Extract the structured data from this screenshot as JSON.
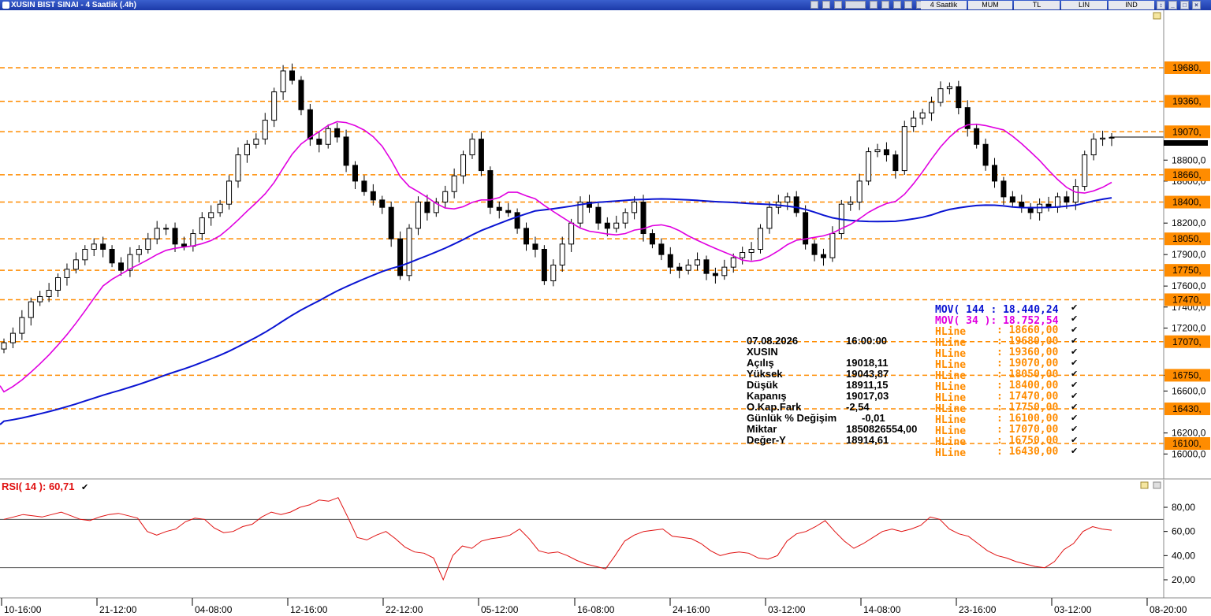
{
  "window": {
    "title": "XUSIN BIST SINAI - 4 Saatlik (.4h)",
    "tabs": [
      "4 Saatlik",
      "MUM",
      "TL",
      "LIN",
      "IND"
    ],
    "toolbar_icons": [
      "pointer-icon",
      "zoom-icon",
      "crosshair-icon",
      "text-icon",
      "draw-icon",
      "color-icon",
      "line-icon",
      "arrow-icon",
      "settings-icon",
      "chevron-icon"
    ]
  },
  "chart_data": [
    {
      "type": "candlestick",
      "title": "XUSIN BIST SINAI - 4 Saatlik (.4h)",
      "x_ticks": [
        "10-16:00",
        "21-12:00",
        "04-08:00",
        "12-16:00",
        "22-12:00",
        "05-12:00",
        "16-08:00",
        "24-16:00",
        "03-12:00",
        "14-08:00",
        "23-16:00",
        "03-12:00",
        "08-20:00"
      ],
      "y_ticks": [
        "16000,0",
        "16200,0",
        "16600,0",
        "16750,0",
        "17200,0",
        "17400,0",
        "17600,0",
        "17900,0",
        "18200,0",
        "18600,0",
        "18800,0",
        "19070,0"
      ],
      "ylim": [
        15900,
        19900
      ],
      "close_series": [
        17060,
        17150,
        17300,
        17450,
        17500,
        17560,
        17680,
        17760,
        17850,
        17950,
        18000,
        17950,
        17820,
        17750,
        17900,
        17950,
        18050,
        18150,
        18150,
        18000,
        17980,
        18100,
        18250,
        18300,
        18380,
        18600,
        18850,
        18950,
        19000,
        19180,
        19450,
        19650,
        19560,
        19280,
        19000,
        18950,
        19100,
        19020,
        18750,
        18600,
        18500,
        18420,
        18350,
        18050,
        17700,
        18150,
        18400,
        18300,
        18400,
        18500,
        18650,
        18850,
        19000,
        18700,
        18350,
        18320,
        18300,
        18150,
        18000,
        17950,
        17650,
        17800,
        18000,
        18200,
        18400,
        18350,
        18200,
        18150,
        18200,
        18300,
        18400,
        18100,
        18000,
        17900,
        17780,
        17750,
        17800,
        17850,
        17720,
        17700,
        17780,
        17870,
        17920,
        17950,
        18150,
        18350,
        18400,
        18450,
        18300,
        18000,
        17900,
        17870,
        18100,
        18380,
        18400,
        18600,
        18880,
        18900,
        18850,
        18700,
        19120,
        19200,
        19250,
        19350,
        19480,
        19500,
        19300,
        19100,
        18950,
        18750,
        18600,
        18450,
        18400,
        18350,
        18300,
        18380,
        18350,
        18450,
        18400,
        18550,
        18850,
        19000,
        19010,
        19017
      ],
      "ohlc_last": {
        "open": 19018.11,
        "high": 19043.87,
        "low": 18911.15,
        "close": 19017.03
      },
      "hlines": [
        18660,
        19680,
        19360,
        19070,
        18050,
        18400,
        17470,
        17750,
        16100,
        17070,
        16750,
        16430
      ],
      "series": [
        {
          "name": "MOV( 144 : 18.440,24",
          "color": "#0a14d2"
        },
        {
          "name": "MOV( 34 ): 18.752,54",
          "color": "#e000e0"
        }
      ]
    },
    {
      "type": "line",
      "title": "RSI( 14 ): 60,71",
      "y_ticks": [
        "20,00",
        "40,00",
        "60,00",
        "80,00"
      ],
      "ylim": [
        10,
        92
      ],
      "reference_lines": [
        30,
        70
      ],
      "color": "#e01010",
      "values": [
        70,
        72,
        74,
        73,
        72,
        74,
        76,
        73,
        70,
        69,
        72,
        74,
        75,
        73,
        71,
        60,
        57,
        60,
        62,
        68,
        71,
        70,
        63,
        59,
        60,
        64,
        66,
        72,
        76,
        74,
        76,
        80,
        82,
        86,
        85,
        88,
        72,
        55,
        53,
        57,
        60,
        54,
        47,
        43,
        42,
        38,
        20,
        40,
        48,
        46,
        52,
        54,
        55,
        57,
        62,
        54,
        44,
        42,
        43,
        40,
        36,
        33,
        31,
        29,
        40,
        52,
        57,
        60,
        61,
        62,
        56,
        55,
        54,
        50,
        44,
        40,
        42,
        43,
        42,
        38,
        37,
        40,
        52,
        58,
        60,
        64,
        69,
        60,
        52,
        46,
        50,
        55,
        60,
        62,
        60,
        62,
        65,
        72,
        70,
        62,
        58,
        56,
        50,
        44,
        40,
        38,
        35,
        33,
        31,
        30,
        35,
        45,
        50,
        60,
        64,
        62,
        61
      ]
    }
  ],
  "info_panel": {
    "date": "07.08.2026",
    "time": "16:00:00",
    "symbol": "XUSIN",
    "rows": [
      {
        "label": "Açılış",
        "value": "19018,11"
      },
      {
        "label": "Yüksek",
        "value": "19043,87"
      },
      {
        "label": "Düşük",
        "value": "18911,15"
      },
      {
        "label": "Kapanış",
        "value": "19017,03"
      },
      {
        "label": "O.Kap.Fark",
        "value": "-2,54"
      },
      {
        "label": "Günlük % Değişim",
        "value": "-0,01"
      },
      {
        "label": "Miktar",
        "value": "1850826554,00"
      },
      {
        "label": "Değer-Y",
        "value": "18914,61"
      }
    ]
  },
  "legend": {
    "mov144": "MOV( 144 : 18.440,24",
    "mov34": "MOV( 34 ): 18.752,54",
    "hline_label": "HLine",
    "hlines": [
      ": 18660,00",
      ": 19680,00",
      ": 19360,00",
      ": 19070,00",
      ": 18050,00",
      ": 18400,00",
      ": 17470,00",
      ": 17750,00",
      ": 16100,00",
      ": 17070,00",
      ": 16750,00",
      ": 16430,00"
    ],
    "check": "✔"
  },
  "price_axis": {
    "hline_labels": [
      "19680,",
      "19360,",
      "19070,",
      "18660,",
      "18400,",
      "18050,",
      "17750,",
      "17470,",
      "17070,",
      "16750,",
      "16430,",
      "16100,"
    ],
    "ticks": [
      "18800,0",
      "18600,0",
      "18200,0",
      "17900,0",
      "17600,0",
      "17400,0",
      "17200,0",
      "16750,0",
      "16600,0",
      "16200,0",
      "16000,0"
    ]
  },
  "rsi_axis": {
    "ticks": [
      "80,00",
      "60,00",
      "40,00",
      "20,00"
    ],
    "label": "RSI( 14 ): 60,71"
  },
  "colors": {
    "up": "#ffffff",
    "down": "#000000",
    "hline": "#ff8c00",
    "mov144": "#0a14d2",
    "mov34": "#e000e0",
    "rsi": "#e01010",
    "hline_text": "#ff8c00"
  }
}
